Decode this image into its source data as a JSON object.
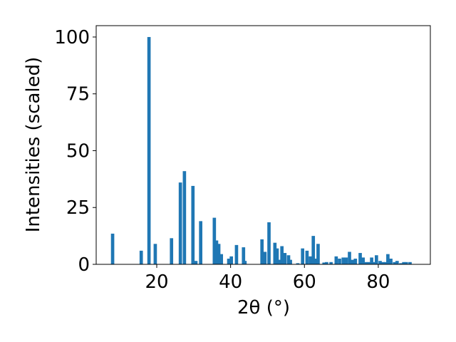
{
  "chart_data": {
    "type": "bar",
    "x_label": "2θ (°)",
    "y_label": "Intensities (scaled)",
    "color": "#1f77b4",
    "x": [
      8.05,
      15.8,
      17.9,
      19.6,
      24.0,
      26.4,
      27.5,
      29.8,
      30.6,
      31.9,
      35.6,
      36.2,
      36.8,
      37.5,
      39.5,
      40.2,
      41.6,
      43.5,
      43.9,
      48.5,
      49.3,
      50.4,
      52.0,
      52.6,
      53.1,
      53.9,
      54.7,
      55.7,
      56.2,
      58.2,
      59.5,
      60.7,
      61.6,
      62.4,
      63.2,
      63.7,
      65.3,
      66.0,
      67.2,
      68.6,
      69.5,
      70.5,
      71.3,
      72.2,
      73.0,
      73.8,
      75.1,
      75.9,
      76.8,
      77.6,
      78.2,
      78.9,
      79.5,
      80.5,
      81.3,
      82.0,
      82.6,
      83.4,
      84.4,
      85.1,
      86.1,
      86.9,
      87.6,
      88.6
    ],
    "values": [
      13.5,
      6,
      100,
      9,
      11.5,
      36,
      41,
      34.5,
      1.5,
      19,
      20.5,
      10.5,
      9,
      4.5,
      2.5,
      3.5,
      8.5,
      7.5,
      1.5,
      11,
      5.5,
      18.5,
      9.5,
      7,
      2,
      8,
      5,
      4,
      2,
      0.5,
      7,
      6,
      3.5,
      12.5,
      2.5,
      9,
      0.8,
      1,
      1,
      3.5,
      2.5,
      3,
      3,
      5.5,
      2,
      2.5,
      5,
      3,
      1,
      1,
      3,
      1,
      4,
      1.5,
      1,
      1,
      4.5,
      2.5,
      1,
      1.5,
      0.5,
      1,
      1,
      1
    ],
    "xlim": [
      3.6,
      94.1
    ],
    "ylim": [
      0,
      105
    ],
    "xticks": [
      20,
      40,
      60,
      80
    ],
    "yticks": [
      0,
      25,
      50,
      75,
      100
    ]
  }
}
